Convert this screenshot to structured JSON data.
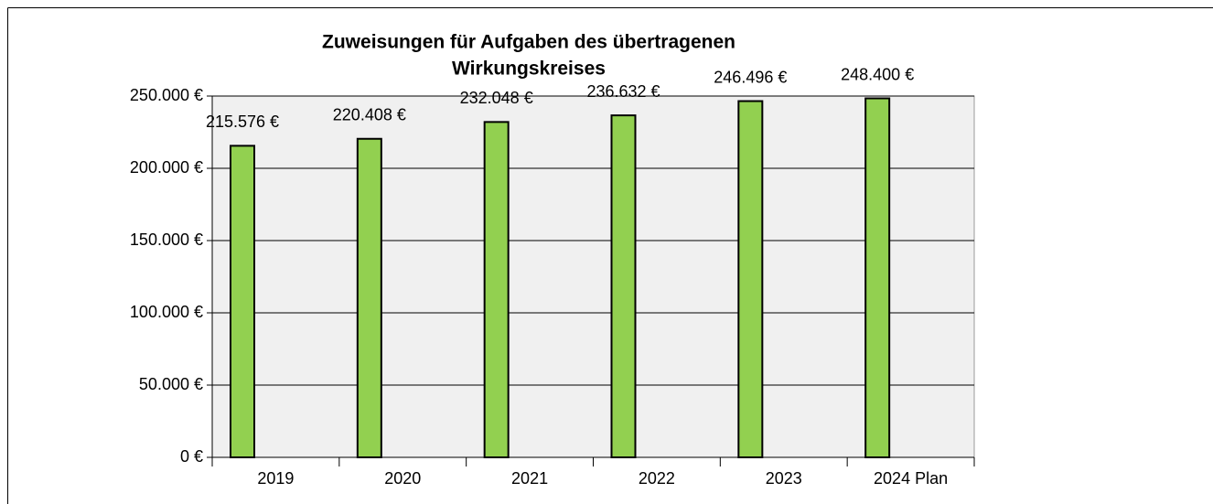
{
  "chart_data": {
    "type": "bar",
    "title": [
      "Zuweisungen für Aufgaben des übertragenen",
      "Wirkungskreises"
    ],
    "categories": [
      "2019",
      "2020",
      "2021",
      "2022",
      "2023",
      "2024 Plan"
    ],
    "values": [
      215576,
      220408,
      232048,
      236632,
      246496,
      248400
    ],
    "value_labels": [
      "215.576 €",
      "220.408 €",
      "232.048 €",
      "236.632 €",
      "246.496 €",
      "248.400 €"
    ],
    "color": "#92d050",
    "ylim": [
      0,
      250000
    ],
    "yticks": [
      {
        "value": 0,
        "label": "0 €"
      },
      {
        "value": 50000,
        "label": "50.000 €"
      },
      {
        "value": 100000,
        "label": "100.000 €"
      },
      {
        "value": 150000,
        "label": "150.000 €"
      },
      {
        "value": 200000,
        "label": "200.000 €"
      },
      {
        "value": 250000,
        "label": "250.000 €"
      }
    ],
    "grid": true
  }
}
